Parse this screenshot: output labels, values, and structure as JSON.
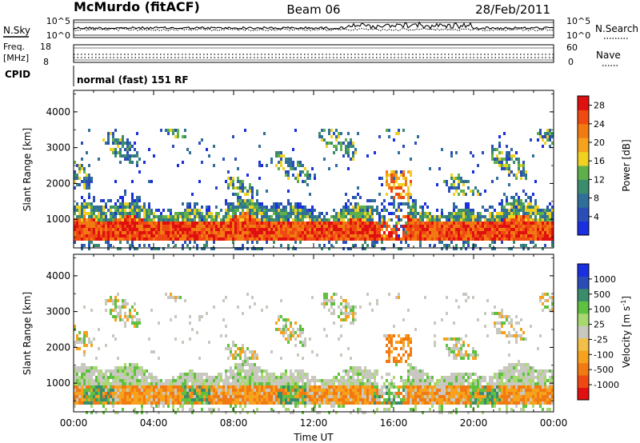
{
  "header": {
    "station": "McMurdo (fitACF)",
    "beam": "Beam 06",
    "date": "28/Feb/2011"
  },
  "noise_panel": {
    "left_label": "N.Sky",
    "right_label": "N.Search",
    "left_ticks": [
      "10^5",
      "10^0"
    ],
    "right_ticks": [
      "10^5",
      "10^0"
    ]
  },
  "freq_panel": {
    "left_label_1": "Freq.",
    "left_label_2": "[MHz]",
    "left_ticks": [
      "18",
      "8"
    ],
    "right_label": "Nave",
    "right_ticks": [
      "60",
      "0"
    ]
  },
  "cpid": {
    "label": "CPID",
    "value": "normal (fast) 151 RF"
  },
  "colors": {
    "power_scale": [
      "#1a2fe0",
      "#2b4db8",
      "#2f6f9a",
      "#3a8c6c",
      "#5fb04a",
      "#f0d020",
      "#f6a21c",
      "#f27a12",
      "#ee4a12",
      "#e01010"
    ],
    "velocity_scale": [
      "#e01010",
      "#f04812",
      "#f27a12",
      "#f6a21c",
      "#f2c046",
      "#c8c8c0",
      "#a8d870",
      "#60c040",
      "#3a8c6c",
      "#2b4db8",
      "#1a2fe0"
    ]
  },
  "chart_data": [
    {
      "type": "heatmap",
      "title": "Power",
      "xlabel": "",
      "ylabel": "Slant Range [km]",
      "y_ticks": [
        "1000",
        "2000",
        "3000",
        "4000"
      ],
      "ylim": [
        200,
        4600
      ],
      "xlim": [
        "00:00",
        "24:00"
      ],
      "colorbar": {
        "label": "Power [dB]",
        "ticks": [
          "4",
          "8",
          "12",
          "16",
          "20",
          "24",
          "28"
        ],
        "range": [
          0,
          30
        ]
      },
      "features": {
        "main_echo_band_km": [
          500,
          1400
        ],
        "peak_power_dB": 30,
        "sparse_echoes_km": [
          1500,
          3500
        ]
      }
    },
    {
      "type": "heatmap",
      "title": "Velocity",
      "xlabel": "Time UT",
      "ylabel": "Slant Range [km]",
      "y_ticks": [
        "1000",
        "2000",
        "3000",
        "4000"
      ],
      "ylim": [
        200,
        4600
      ],
      "x_ticks": [
        "00:00",
        "04:00",
        "08:00",
        "12:00",
        "16:00",
        "20:00",
        "00:00"
      ],
      "colorbar": {
        "label": "Velocity [m s",
        "label_sup": "-1",
        "label_close": "]",
        "ticks": [
          "1000",
          "500",
          "100",
          "25",
          "-25",
          "-100",
          "-500",
          "-1000"
        ],
        "range": [
          -1000,
          1000
        ]
      },
      "features": {
        "main_echo_band_km": [
          500,
          1400
        ],
        "dominant_velocity_m_s": -300,
        "ground_scatter_band_km": [
          1200,
          1600
        ]
      }
    }
  ]
}
